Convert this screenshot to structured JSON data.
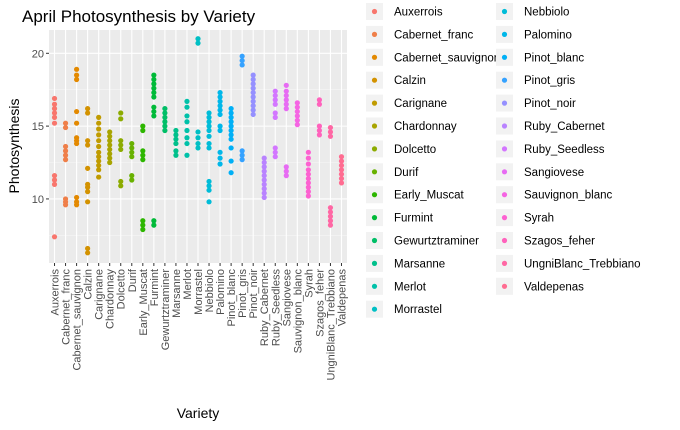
{
  "chart_data": {
    "type": "scatter",
    "title": "April Photosynthesis by Variety",
    "xlabel": "Variety",
    "ylabel": "Photosynthesis",
    "ylim": [
      5.6,
      21.6
    ],
    "y_ticks": [
      10,
      15,
      20
    ],
    "grid": true,
    "legend_placement": "right",
    "categories": [
      "Auxerrois",
      "Cabernet_franc",
      "Cabernet_sauvignon",
      "Calzin",
      "Carignane",
      "Chardonnay",
      "Dolcetto",
      "Durif",
      "Early_Muscat",
      "Furmint",
      "Gewurtztraminer",
      "Marsanne",
      "Merlot",
      "Morrastel",
      "Nebbiolo",
      "Palomino",
      "Pinot_blanc",
      "Pinot_gris",
      "Pinot_noir",
      "Ruby_Cabernet",
      "Ruby_Seedless",
      "Sangiovese",
      "Sauvignon_blanc",
      "Syrah",
      "Szagos_feher",
      "UngniBlanc_Trebbiano",
      "Valdepenas"
    ],
    "legend_categories": [
      "Auxerrois",
      "Cabernet_franc",
      "Cabernet_sauvignon",
      "Calzin",
      "Carignane",
      "Chardonnay",
      "Dolcetto",
      "Durif",
      "Early_Muscat",
      "Furmint",
      "Gewurtztraminer",
      "Marsanne",
      "Merlot",
      "Morrastel",
      "Nebbiolo",
      "Palomino",
      "Pinot_blanc",
      "Pinot_gris",
      "Pinot_noir",
      "Ruby_Cabernet",
      "Ruby_Seedless",
      "Sangiovese",
      "Sauvignon_blanc",
      "Syrah",
      "Szagos_feher",
      "UngniBlanc_Trebbiano",
      "Valdepenas"
    ],
    "colors": [
      "#F8766D",
      "#EF7F49",
      "#E38900",
      "#D39200",
      "#C09B00",
      "#A8A400",
      "#8CAB00",
      "#68B100",
      "#2DB600",
      "#00BA38",
      "#00BE67",
      "#00C08B",
      "#00C1A9",
      "#00BFC4",
      "#00BCD8",
      "#00B7E9",
      "#00B0F6",
      "#35A2FF",
      "#9590FF",
      "#B983FF",
      "#D376FF",
      "#E76BF3",
      "#F564E3",
      "#FD61D1",
      "#FF62BC",
      "#FF67A4",
      "#FF6C91"
    ],
    "points": [
      [
        16.9,
        16.5,
        16.2,
        15.9,
        15.6,
        15.2,
        11.6,
        11.3,
        11.0,
        7.4
      ],
      [
        15.2,
        14.9,
        13.6,
        13.3,
        13.0,
        12.7,
        10.0,
        9.8,
        9.6
      ],
      [
        18.9,
        18.5,
        18.2,
        16.0,
        15.2,
        14.2,
        14.0,
        13.8,
        10.1,
        9.8,
        9.6
      ],
      [
        16.2,
        15.9,
        14.0,
        13.7,
        12.1,
        11.0,
        10.8,
        10.5,
        9.8,
        6.6,
        6.3
      ],
      [
        15.6,
        15.2,
        14.8,
        14.4,
        14.0,
        13.6,
        13.2,
        12.9,
        12.6,
        12.3,
        12.0,
        11.5
      ],
      [
        14.6,
        14.3,
        14.0,
        13.7,
        13.4,
        13.1,
        12.8,
        12.5
      ],
      [
        15.9,
        15.5,
        14.0,
        13.7,
        13.4,
        11.2,
        10.9
      ],
      [
        13.8,
        13.5,
        13.2,
        12.9,
        11.6,
        11.3
      ],
      [
        15.0,
        14.7,
        13.3,
        13.0,
        12.7,
        8.5,
        8.2,
        7.9
      ],
      [
        18.5,
        18.2,
        17.9,
        17.6,
        17.3,
        17.0,
        16.3,
        16.0,
        15.7,
        8.5,
        8.2
      ],
      [
        16.2,
        15.9,
        15.6,
        15.3,
        15.0,
        14.7
      ],
      [
        14.7,
        14.4,
        14.1,
        13.8,
        13.3,
        13.0
      ],
      [
        16.7,
        16.3,
        15.7,
        15.3,
        14.7,
        14.2,
        13.8,
        13.0
      ],
      [
        21.0,
        20.7,
        14.6,
        14.2,
        13.8,
        13.5
      ],
      [
        15.9,
        15.6,
        15.3,
        15.0,
        14.7,
        14.3,
        13.8,
        13.5,
        11.2,
        10.9,
        10.6,
        9.8
      ],
      [
        17.3,
        17.0,
        16.7,
        16.4,
        16.1,
        15.8,
        15.0,
        14.7,
        13.2,
        12.8,
        12.4
      ],
      [
        16.2,
        15.9,
        15.6,
        15.3,
        15.0,
        14.7,
        14.4,
        14.1,
        13.5,
        12.6,
        11.8
      ],
      [
        19.8,
        19.5,
        19.2,
        13.3,
        13.0,
        12.7
      ],
      [
        18.5,
        18.2,
        17.9,
        17.6,
        17.3,
        17.0,
        16.7,
        16.4,
        16.1,
        15.8
      ],
      [
        12.8,
        12.5,
        12.2,
        11.9,
        11.6,
        11.3,
        11.0,
        10.7,
        10.4,
        10.1
      ],
      [
        17.4,
        17.1,
        16.8,
        16.5,
        15.9,
        15.6,
        13.5,
        13.2,
        12.9
      ],
      [
        17.8,
        17.4,
        17.1,
        16.8,
        16.5,
        16.2,
        12.2,
        11.9,
        11.6
      ],
      [
        16.6,
        16.3,
        16.0,
        15.7,
        15.4,
        15.1
      ],
      [
        13.2,
        12.8,
        12.4,
        12.0,
        11.7,
        11.4,
        11.1,
        10.8,
        10.5,
        10.2
      ],
      [
        16.8,
        16.5,
        15.0,
        14.7,
        14.4
      ],
      [
        14.9,
        14.6,
        14.3,
        9.4,
        9.1,
        8.8,
        8.5,
        8.2
      ],
      [
        12.9,
        12.6,
        12.3,
        12.0,
        11.7,
        11.4,
        11.1
      ]
    ]
  }
}
